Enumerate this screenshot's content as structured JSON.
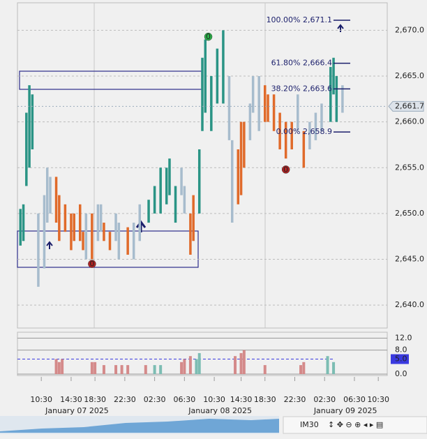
{
  "chart_data": {
    "type": "bar",
    "xlim": [
      0,
      124
    ],
    "ylim": [
      2637.5,
      2673
    ],
    "yticks": [
      {
        "value": 2640,
        "label": "2,640.0"
      },
      {
        "value": 2645,
        "label": "2,645.0"
      },
      {
        "value": 2650,
        "label": "2,650.0"
      },
      {
        "value": 2655,
        "label": "2,655.0"
      },
      {
        "value": 2660,
        "label": "2,660.0"
      },
      {
        "value": 2665,
        "label": "2,665.0"
      },
      {
        "value": 2670,
        "label": "2,670.0"
      }
    ],
    "xticks": [
      {
        "value": 8,
        "label": "10:30"
      },
      {
        "value": 18,
        "label": "14:30"
      },
      {
        "value": 26,
        "label": "18:30"
      },
      {
        "value": 36,
        "label": "22:30"
      },
      {
        "value": 46,
        "label": "02:30"
      },
      {
        "value": 56,
        "label": "06:30"
      },
      {
        "value": 66,
        "label": "10:30"
      },
      {
        "value": 75,
        "label": "14:30"
      },
      {
        "value": 83,
        "label": "18:30"
      },
      {
        "value": 93,
        "label": "22:30"
      },
      {
        "value": 103,
        "label": "02:30"
      },
      {
        "value": 113,
        "label": "06:30"
      },
      {
        "value": 121,
        "label": "10:30"
      }
    ],
    "date_labels": [
      {
        "value": 20,
        "label": "January 07 2025"
      },
      {
        "value": 68,
        "label": "January 08 2025"
      },
      {
        "value": 110,
        "label": "January 09 2025"
      }
    ],
    "grid": true,
    "bars": [
      {
        "color": "#2a9485",
        "x": [
          1,
          2,
          3,
          4,
          5,
          44,
          46,
          48,
          50,
          51,
          53,
          61,
          62,
          63,
          65,
          67,
          69,
          105,
          106,
          107
        ],
        "low": [
          2646.5,
          2647,
          2653,
          2655,
          2657,
          2649,
          2650,
          2650,
          2651,
          2652,
          2649,
          2650,
          2659,
          2661,
          2659,
          2662,
          2662,
          2660,
          2663,
          2660
        ],
        "high": [
          2650.5,
          2651,
          2661,
          2664,
          2663,
          2651.5,
          2653,
          2655,
          2655,
          2656,
          2653,
          2657,
          2667,
          2669,
          2665,
          2668,
          2670,
          2666,
          2667,
          2665
        ]
      },
      {
        "color": "#e06a2a",
        "x": [
          13,
          14,
          16,
          18,
          19,
          21,
          22,
          25,
          29,
          31,
          37,
          58,
          59,
          74,
          75,
          76,
          83,
          84,
          86,
          88,
          90,
          92,
          96
        ],
        "low": [
          2649,
          2647,
          2648,
          2646,
          2647,
          2647,
          2646,
          2645,
          2647,
          2646,
          2645.5,
          2645.5,
          2647,
          2651,
          2652,
          2655,
          2660,
          2660,
          2659,
          2657,
          2656,
          2657,
          2655
        ],
        "high": [
          2654,
          2652,
          2651,
          2650,
          2650,
          2651,
          2648,
          2650,
          2649,
          2648,
          2648.5,
          2650,
          2652,
          2657,
          2660,
          2660,
          2664,
          2663,
          2663,
          2661,
          2660,
          2660,
          2659
        ]
      },
      {
        "color": "#a7bccd",
        "x": [
          7,
          9,
          10,
          11,
          23,
          27,
          28,
          33,
          34,
          39,
          41,
          55,
          56,
          71,
          72,
          78,
          79,
          81,
          94,
          98,
          100,
          102,
          109
        ],
        "low": [
          2642,
          2644,
          2649,
          2650,
          2645,
          2647,
          2648,
          2647,
          2645,
          2645,
          2647,
          2652,
          2650,
          2658,
          2649,
          2658,
          2661,
          2659,
          2659,
          2657,
          2658,
          2659,
          2661
        ],
        "high": [
          2650,
          2652,
          2655,
          2654,
          2650,
          2651,
          2651,
          2650,
          2649,
          2649,
          2651,
          2655,
          2653,
          2665,
          2658,
          2662,
          2665,
          2665,
          2663,
          2660,
          2661,
          2662,
          2664
        ]
      }
    ],
    "fib_levels": [
      {
        "value": 2671.1,
        "label": "100.00% 2,671.1"
      },
      {
        "value": 2666.4,
        "label": "61.80% 2,666.4"
      },
      {
        "value": 2663.6,
        "label": "38.20% 2,663.6"
      },
      {
        "value": 2658.9,
        "label": "0.00% 2,658.9"
      }
    ],
    "last_price": {
      "value": 2661.7,
      "label": "2,661.7"
    },
    "signals": [
      {
        "x": 64,
        "price": 2669.3,
        "label": "0",
        "color": "#2bb34a"
      },
      {
        "x": 25,
        "price": 2644.5,
        "label": "0",
        "color": "#b22222"
      },
      {
        "x": 90,
        "price": 2654.8,
        "label": "0",
        "color": "#b22222"
      }
    ],
    "volume": {
      "ylim": [
        0,
        13.5
      ],
      "yticks": [
        {
          "value": 0,
          "label": "0.0"
        },
        {
          "value": 8,
          "label": "8.0"
        },
        {
          "value": 12,
          "label": "12.0"
        }
      ],
      "threshold": {
        "value": 5,
        "label": "5.0"
      },
      "series": [
        {
          "color": "#d48a8a",
          "x": [
            13,
            14,
            15,
            25,
            26,
            29,
            33,
            35,
            37,
            43,
            55,
            56,
            58,
            73,
            75,
            76,
            83,
            95,
            96
          ],
          "values": [
            5,
            4,
            5,
            4,
            4,
            3,
            3,
            3,
            3,
            3,
            4,
            5,
            6,
            6,
            7,
            8,
            3,
            3,
            4
          ]
        },
        {
          "color": "#7cbdb3",
          "x": [
            46,
            48,
            60,
            61,
            104,
            106
          ],
          "values": [
            3,
            3,
            5,
            7,
            6,
            4
          ]
        }
      ]
    },
    "toolbar": {
      "instrument": "IM30"
    }
  }
}
